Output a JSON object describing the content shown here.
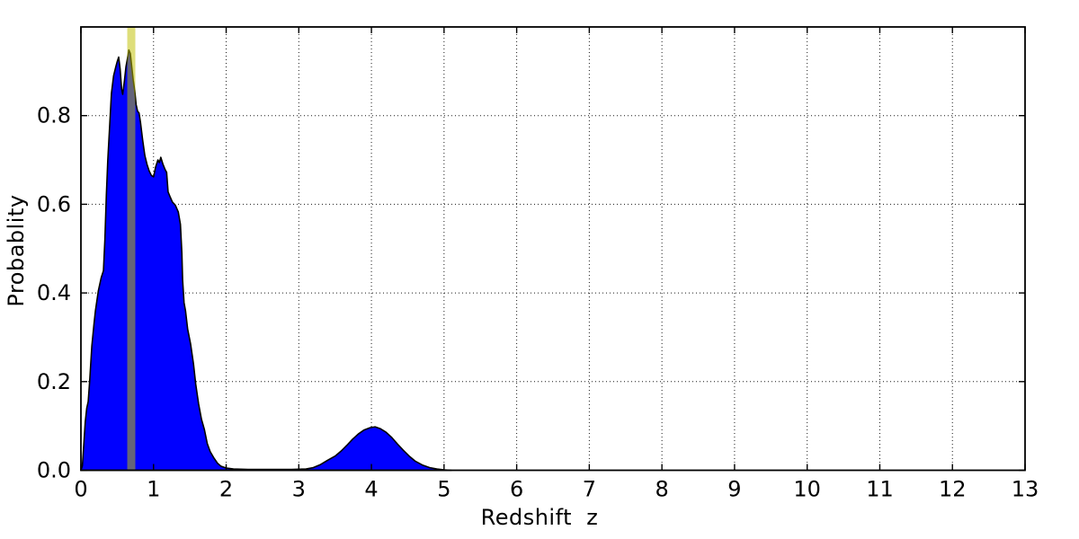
{
  "chart_data": {
    "type": "area",
    "title": "",
    "xlabel": "Redshift  z",
    "ylabel": "Probablity",
    "xlim": [
      0,
      13
    ],
    "ylim": [
      0,
      1.0
    ],
    "grid": "on",
    "legend": "none",
    "x_ticks": {
      "values": [
        0,
        1,
        2,
        3,
        4,
        5,
        6,
        7,
        8,
        9,
        10,
        11,
        12,
        13
      ],
      "labels": [
        "0",
        "1",
        "2",
        "3",
        "4",
        "5",
        "6",
        "7",
        "8",
        "9",
        "10",
        "11",
        "12",
        "13"
      ]
    },
    "y_ticks": {
      "values": [
        0.0,
        0.2,
        0.4,
        0.6,
        0.8
      ],
      "labels": [
        "0.0",
        "0.2",
        "0.4",
        "0.6",
        "0.8"
      ]
    },
    "series": [
      {
        "name": "redshift-probability-pdf",
        "style": "filled-curve",
        "points": [
          [
            0.0,
            0.0
          ],
          [
            0.02,
            0.01
          ],
          [
            0.04,
            0.06
          ],
          [
            0.06,
            0.11
          ],
          [
            0.08,
            0.14
          ],
          [
            0.1,
            0.155
          ],
          [
            0.12,
            0.2
          ],
          [
            0.15,
            0.28
          ],
          [
            0.18,
            0.33
          ],
          [
            0.2,
            0.36
          ],
          [
            0.24,
            0.405
          ],
          [
            0.28,
            0.435
          ],
          [
            0.31,
            0.45
          ],
          [
            0.33,
            0.52
          ],
          [
            0.35,
            0.62
          ],
          [
            0.37,
            0.7
          ],
          [
            0.4,
            0.79
          ],
          [
            0.42,
            0.85
          ],
          [
            0.45,
            0.89
          ],
          [
            0.48,
            0.91
          ],
          [
            0.5,
            0.922
          ],
          [
            0.52,
            0.932
          ],
          [
            0.54,
            0.905
          ],
          [
            0.56,
            0.86
          ],
          [
            0.575,
            0.848
          ],
          [
            0.6,
            0.88
          ],
          [
            0.62,
            0.91
          ],
          [
            0.64,
            0.928
          ],
          [
            0.66,
            0.948
          ],
          [
            0.68,
            0.94
          ],
          [
            0.7,
            0.91
          ],
          [
            0.72,
            0.88
          ],
          [
            0.74,
            0.858
          ],
          [
            0.76,
            0.825
          ],
          [
            0.78,
            0.81
          ],
          [
            0.8,
            0.806
          ],
          [
            0.82,
            0.785
          ],
          [
            0.85,
            0.745
          ],
          [
            0.88,
            0.71
          ],
          [
            0.91,
            0.69
          ],
          [
            0.94,
            0.675
          ],
          [
            0.97,
            0.665
          ],
          [
            1.0,
            0.662
          ],
          [
            1.03,
            0.685
          ],
          [
            1.06,
            0.7
          ],
          [
            1.08,
            0.694
          ],
          [
            1.1,
            0.706
          ],
          [
            1.13,
            0.69
          ],
          [
            1.16,
            0.678
          ],
          [
            1.18,
            0.672
          ],
          [
            1.2,
            0.628
          ],
          [
            1.23,
            0.616
          ],
          [
            1.26,
            0.605
          ],
          [
            1.3,
            0.598
          ],
          [
            1.34,
            0.583
          ],
          [
            1.37,
            0.555
          ],
          [
            1.39,
            0.49
          ],
          [
            1.4,
            0.43
          ],
          [
            1.42,
            0.378
          ],
          [
            1.44,
            0.36
          ],
          [
            1.47,
            0.318
          ],
          [
            1.51,
            0.285
          ],
          [
            1.55,
            0.24
          ],
          [
            1.58,
            0.195
          ],
          [
            1.62,
            0.15
          ],
          [
            1.66,
            0.115
          ],
          [
            1.7,
            0.092
          ],
          [
            1.74,
            0.06
          ],
          [
            1.78,
            0.042
          ],
          [
            1.83,
            0.028
          ],
          [
            1.88,
            0.016
          ],
          [
            1.93,
            0.009
          ],
          [
            2.0,
            0.005
          ],
          [
            2.1,
            0.003
          ],
          [
            2.3,
            0.002
          ],
          [
            2.6,
            0.002
          ],
          [
            2.9,
            0.002
          ],
          [
            3.1,
            0.003
          ],
          [
            3.2,
            0.006
          ],
          [
            3.3,
            0.013
          ],
          [
            3.4,
            0.023
          ],
          [
            3.5,
            0.032
          ],
          [
            3.58,
            0.043
          ],
          [
            3.66,
            0.056
          ],
          [
            3.74,
            0.07
          ],
          [
            3.82,
            0.082
          ],
          [
            3.9,
            0.091
          ],
          [
            3.98,
            0.096
          ],
          [
            4.05,
            0.098
          ],
          [
            4.12,
            0.094
          ],
          [
            4.2,
            0.086
          ],
          [
            4.28,
            0.074
          ],
          [
            4.36,
            0.059
          ],
          [
            4.44,
            0.045
          ],
          [
            4.52,
            0.032
          ],
          [
            4.6,
            0.021
          ],
          [
            4.7,
            0.012
          ],
          [
            4.8,
            0.006
          ],
          [
            4.9,
            0.003
          ],
          [
            5.0,
            0.001
          ],
          [
            5.1,
            0.0
          ]
        ]
      }
    ],
    "annotations": [
      {
        "name": "selected-redshift-band",
        "type": "vertical-band",
        "x_min": 0.638,
        "x_max": 0.749
      }
    ],
    "colors": {
      "curve_fill": "#0000ff",
      "curve_outline": "#000000",
      "band_fill_rgb": "191,191,0",
      "band_alpha": "0.52",
      "grid": "#1a1a1a",
      "frame": "#000000",
      "text": "#000000",
      "background": "#ffffff"
    }
  }
}
